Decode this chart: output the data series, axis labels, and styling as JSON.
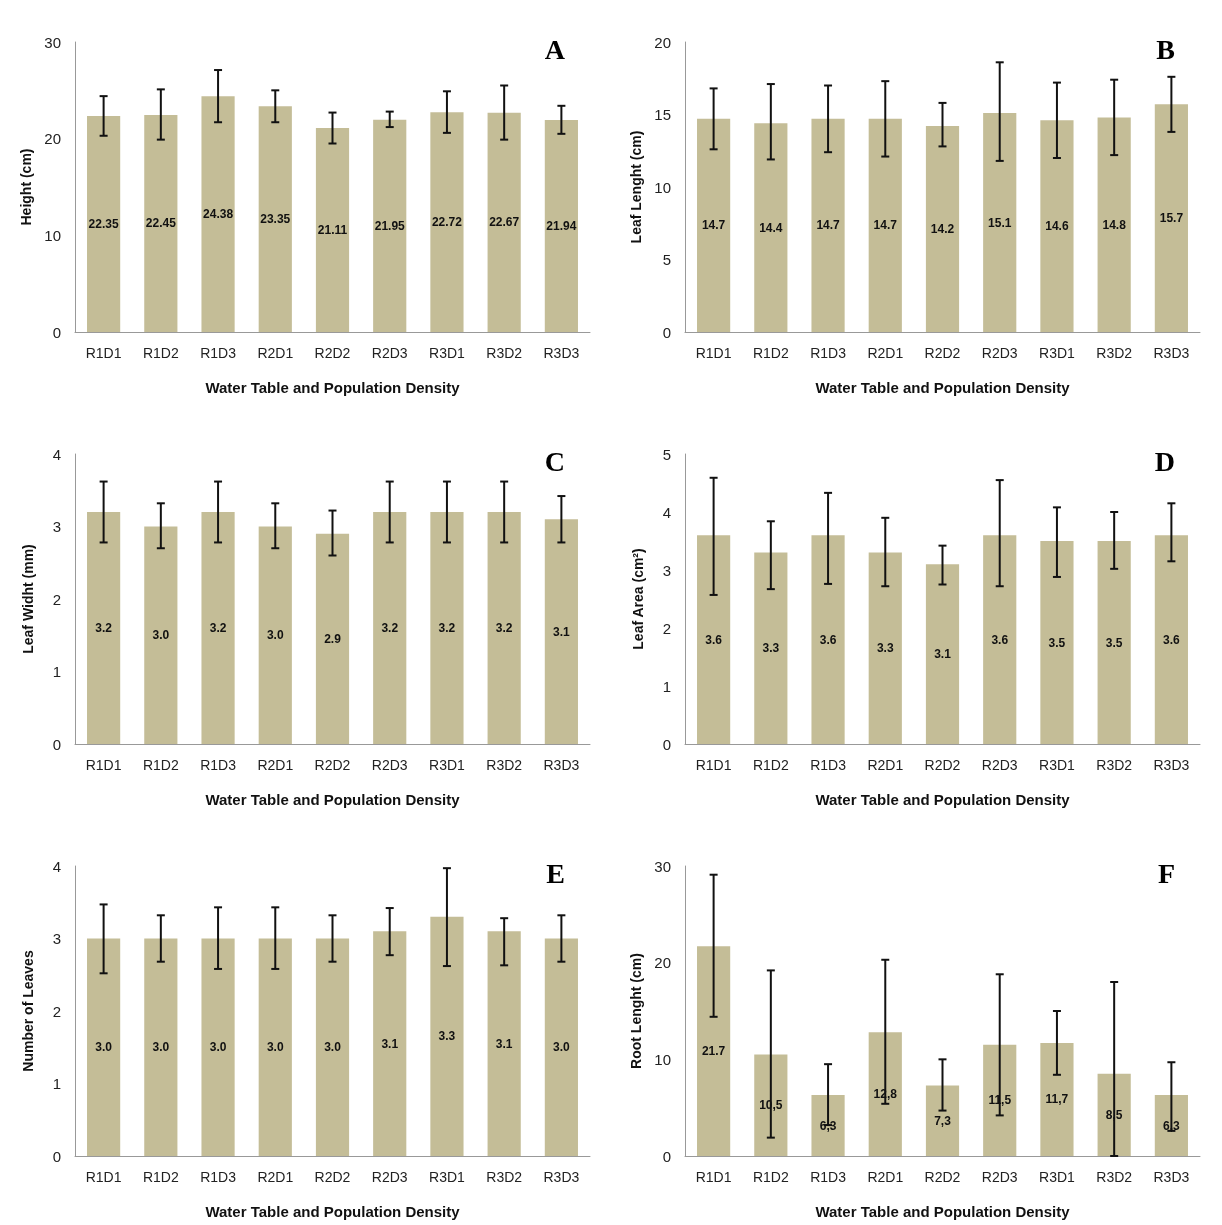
{
  "chart_data": [
    {
      "type": "bar",
      "title": "A",
      "xlabel": "Water Table and Population Density",
      "ylabel": "Height (cm)",
      "categories": [
        "R1D1",
        "R1D2",
        "R1D3",
        "R2D1",
        "R2D2",
        "R2D3",
        "R3D1",
        "R3D2",
        "R3D3"
      ],
      "color": "#c4bd97",
      "values": [
        22.35,
        22.45,
        24.38,
        23.35,
        21.11,
        21.95,
        22.72,
        22.67,
        21.94
      ],
      "value_labels": [
        "22.35",
        "22.45",
        "24.38",
        "23.35",
        "21.11",
        "21.95",
        "22.72",
        "22.67",
        "21.94"
      ],
      "errors": [
        [
          20.3,
          24.4
        ],
        [
          19.9,
          25.1
        ],
        [
          21.7,
          27.1
        ],
        [
          21.7,
          25.0
        ],
        [
          19.5,
          22.7
        ],
        [
          21.2,
          22.8
        ],
        [
          20.6,
          24.9
        ],
        [
          19.9,
          25.5
        ],
        [
          20.5,
          23.4
        ]
      ],
      "ylim": [
        0,
        30
      ],
      "yticks": [
        0,
        10,
        20,
        30
      ]
    },
    {
      "type": "bar",
      "title": "B",
      "xlabel": "Water Table and Population Density",
      "ylabel": "Leaf Lenght (cm)",
      "categories": [
        "R1D1",
        "R1D2",
        "R1D3",
        "R2D1",
        "R2D2",
        "R2D3",
        "R3D1",
        "R3D2",
        "R3D3"
      ],
      "color": "#c4bd97",
      "values": [
        14.7,
        14.4,
        14.7,
        14.7,
        14.2,
        15.1,
        14.6,
        14.8,
        15.7
      ],
      "value_labels": [
        "14.7",
        "14.4",
        "14.7",
        "14.7",
        "14.2",
        "15.1",
        "14.6",
        "14.8",
        "15.7"
      ],
      "errors": [
        [
          12.6,
          16.8
        ],
        [
          11.9,
          17.1
        ],
        [
          12.4,
          17.0
        ],
        [
          12.1,
          17.3
        ],
        [
          12.8,
          15.8
        ],
        [
          11.8,
          18.6
        ],
        [
          12.0,
          17.2
        ],
        [
          12.2,
          17.4
        ],
        [
          13.8,
          17.6
        ]
      ],
      "ylim": [
        0,
        20
      ],
      "yticks": [
        0,
        5,
        10,
        15,
        20
      ]
    },
    {
      "type": "bar",
      "title": "C",
      "xlabel": "Water Table and Population Density",
      "ylabel": "Leaf Widht (mm)",
      "categories": [
        "R1D1",
        "R1D2",
        "R1D3",
        "R2D1",
        "R2D2",
        "R2D3",
        "R3D1",
        "R3D2",
        "R3D3"
      ],
      "color": "#c4bd97",
      "values": [
        3.2,
        3.0,
        3.2,
        3.0,
        2.9,
        3.2,
        3.2,
        3.2,
        3.1
      ],
      "value_labels": [
        "3.2",
        "3.0",
        "3.2",
        "3.0",
        "2.9",
        "3.2",
        "3.2",
        "3.2",
        "3.1"
      ],
      "errors": [
        [
          2.78,
          3.62
        ],
        [
          2.7,
          3.32
        ],
        [
          2.78,
          3.62
        ],
        [
          2.7,
          3.32
        ],
        [
          2.6,
          3.22
        ],
        [
          2.78,
          3.62
        ],
        [
          2.78,
          3.62
        ],
        [
          2.78,
          3.62
        ],
        [
          2.78,
          3.42
        ]
      ],
      "ylim": [
        0,
        4
      ],
      "yticks": [
        0,
        1,
        2,
        3,
        4
      ]
    },
    {
      "type": "bar",
      "title": "D",
      "xlabel": "Water Table and Population Density",
      "ylabel": "Leaf Area (cm²)",
      "categories": [
        "R1D1",
        "R1D2",
        "R1D3",
        "R2D1",
        "R2D2",
        "R2D3",
        "R3D1",
        "R3D2",
        "R3D3"
      ],
      "color": "#c4bd97",
      "values": [
        3.6,
        3.3,
        3.6,
        3.3,
        3.1,
        3.6,
        3.5,
        3.5,
        3.6
      ],
      "value_labels": [
        "3.6",
        "3.3",
        "3.6",
        "3.3",
        "3.1",
        "3.6",
        "3.5",
        "3.5",
        "3.6"
      ],
      "errors": [
        [
          2.57,
          4.59
        ],
        [
          2.67,
          3.84
        ],
        [
          2.76,
          4.33
        ],
        [
          2.72,
          3.9
        ],
        [
          2.75,
          3.42
        ],
        [
          2.72,
          4.55
        ],
        [
          2.88,
          4.08
        ],
        [
          3.02,
          4.0
        ],
        [
          3.15,
          4.15
        ]
      ],
      "ylim": [
        0,
        5
      ],
      "yticks": [
        0,
        1,
        2,
        3,
        4,
        5
      ]
    },
    {
      "type": "bar",
      "title": "E",
      "xlabel": "Water Table and Population Density",
      "ylabel": "Number of Leaves",
      "categories": [
        "R1D1",
        "R1D2",
        "R1D3",
        "R2D1",
        "R2D2",
        "R2D3",
        "R3D1",
        "R3D2",
        "R3D3"
      ],
      "color": "#c4bd97",
      "values": [
        3.0,
        3.0,
        3.0,
        3.0,
        3.0,
        3.1,
        3.3,
        3.1,
        3.0
      ],
      "value_labels": [
        "3.0",
        "3.0",
        "3.0",
        "3.0",
        "3.0",
        "3.1",
        "3.3",
        "3.1",
        "3.0"
      ],
      "errors": [
        [
          2.52,
          3.47
        ],
        [
          2.68,
          3.32
        ],
        [
          2.58,
          3.43
        ],
        [
          2.58,
          3.43
        ],
        [
          2.68,
          3.32
        ],
        [
          2.77,
          3.42
        ],
        [
          2.62,
          3.97
        ],
        [
          2.63,
          3.28
        ],
        [
          2.68,
          3.32
        ]
      ],
      "ylim": [
        0,
        4
      ],
      "yticks": [
        0,
        1,
        2,
        3,
        4
      ]
    },
    {
      "type": "bar",
      "title": "F",
      "xlabel": "Water Table and Population Density",
      "ylabel": "Root Lenght (cm)",
      "categories": [
        "R1D1",
        "R1D2",
        "R1D3",
        "R2D1",
        "R2D2",
        "R2D3",
        "R3D1",
        "R3D2",
        "R3D3"
      ],
      "color": "#c4bd97",
      "values": [
        21.7,
        10.5,
        6.3,
        12.8,
        7.3,
        11.5,
        11.7,
        8.5,
        6.3
      ],
      "value_labels": [
        "21.7",
        "10,5",
        "6,3",
        "12,8",
        "7,3",
        "11,5",
        "11,7",
        "8,5",
        "6,3"
      ],
      "errors": [
        [
          14.4,
          29.1
        ],
        [
          1.9,
          19.2
        ],
        [
          3.2,
          9.5
        ],
        [
          5.4,
          20.3
        ],
        [
          4.7,
          10.0
        ],
        [
          4.2,
          18.8
        ],
        [
          8.4,
          15.0
        ],
        [
          0,
          18.0
        ],
        [
          2.6,
          9.7
        ]
      ],
      "ylim": [
        0,
        30
      ],
      "yticks": [
        0,
        10,
        20,
        30
      ]
    }
  ]
}
